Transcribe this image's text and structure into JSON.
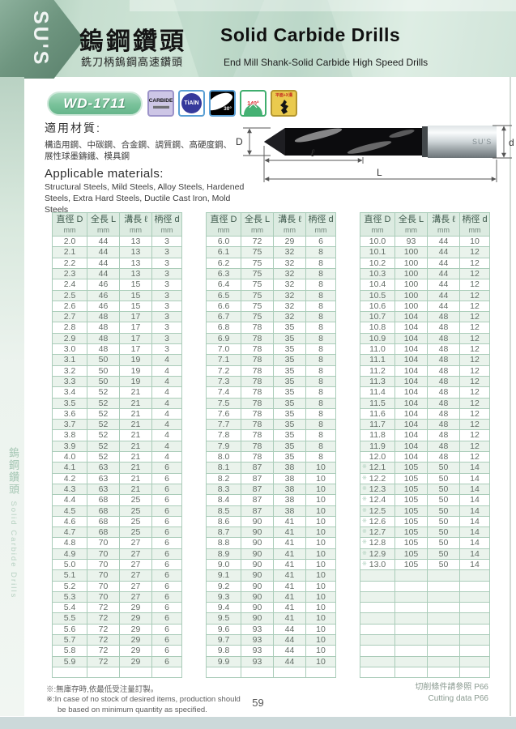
{
  "page": {
    "logo": "SU'S",
    "number": "59"
  },
  "header": {
    "title_zh": "鎢鋼鑽頭",
    "subtitle_zh": "銑刀柄鎢鋼高速鑽頭",
    "title_en": "Solid Carbide Drills",
    "subtitle_en": "End Mill Shank-Solid Carbide High Speed Drills"
  },
  "sidebar": {
    "zh": "鎢鋼鑽頭",
    "en": "Solid Carbide Drills"
  },
  "model": {
    "code": "WD-1711",
    "icons": [
      {
        "name": "carbide",
        "label": "CARBIDE"
      },
      {
        "name": "tialn-coating",
        "label": "TiAlN"
      },
      {
        "name": "helix-30deg",
        "label": "30°"
      },
      {
        "name": "point-angle-140deg",
        "label": "140°"
      },
      {
        "name": "shank-type",
        "label": "平面+X溝"
      }
    ]
  },
  "materials": {
    "heading_zh": "適用材質:",
    "body_zh_line1": "構造用鋼、中碳鋼、合金鋼、調質鋼、高硬度鋼、",
    "body_zh_line2": "展性球墨鑄鐵、模具鋼",
    "heading_en": "Applicable materials:",
    "body_en": "Structural Steels, Mild Steels, Alloy Steels, Hardened Steels, Extra Hard Steels, Ductile Cast Iron, Mold Steels"
  },
  "diagram": {
    "brand": "SU'S",
    "labels": {
      "diameter": "D",
      "flute": "ℓ",
      "total": "L",
      "shank": "d"
    }
  },
  "tables": {
    "star_mark": "※",
    "headers": [
      {
        "label": "直徑 D",
        "unit": "mm"
      },
      {
        "label": "全長 L",
        "unit": "mm"
      },
      {
        "label": "溝長 ℓ",
        "unit": "mm"
      },
      {
        "label": "柄徑 d",
        "unit": "mm"
      }
    ],
    "table1": {
      "empty_rows": 1,
      "rows": [
        [
          "2.0",
          "44",
          "13",
          "3"
        ],
        [
          "2.1",
          "44",
          "13",
          "3"
        ],
        [
          "2.2",
          "44",
          "13",
          "3"
        ],
        [
          "2.3",
          "44",
          "13",
          "3"
        ],
        [
          "2.4",
          "46",
          "15",
          "3"
        ],
        [
          "2.5",
          "46",
          "15",
          "3"
        ],
        [
          "2.6",
          "46",
          "15",
          "3"
        ],
        [
          "2.7",
          "48",
          "17",
          "3"
        ],
        [
          "2.8",
          "48",
          "17",
          "3"
        ],
        [
          "2.9",
          "48",
          "17",
          "3"
        ],
        [
          "3.0",
          "48",
          "17",
          "3"
        ],
        [
          "3.1",
          "50",
          "19",
          "4"
        ],
        [
          "3.2",
          "50",
          "19",
          "4"
        ],
        [
          "3.3",
          "50",
          "19",
          "4"
        ],
        [
          "3.4",
          "52",
          "21",
          "4"
        ],
        [
          "3.5",
          "52",
          "21",
          "4"
        ],
        [
          "3.6",
          "52",
          "21",
          "4"
        ],
        [
          "3.7",
          "52",
          "21",
          "4"
        ],
        [
          "3.8",
          "52",
          "21",
          "4"
        ],
        [
          "3.9",
          "52",
          "21",
          "4"
        ],
        [
          "4.0",
          "52",
          "21",
          "4"
        ],
        [
          "4.1",
          "63",
          "21",
          "6"
        ],
        [
          "4.2",
          "63",
          "21",
          "6"
        ],
        [
          "4.3",
          "63",
          "21",
          "6"
        ],
        [
          "4.4",
          "68",
          "25",
          "6"
        ],
        [
          "4.5",
          "68",
          "25",
          "6"
        ],
        [
          "4.6",
          "68",
          "25",
          "6"
        ],
        [
          "4.7",
          "68",
          "25",
          "6"
        ],
        [
          "4.8",
          "70",
          "27",
          "6"
        ],
        [
          "4.9",
          "70",
          "27",
          "6"
        ],
        [
          "5.0",
          "70",
          "27",
          "6"
        ],
        [
          "5.1",
          "70",
          "27",
          "6"
        ],
        [
          "5.2",
          "70",
          "27",
          "6"
        ],
        [
          "5.3",
          "70",
          "27",
          "6"
        ],
        [
          "5.4",
          "72",
          "29",
          "6"
        ],
        [
          "5.5",
          "72",
          "29",
          "6"
        ],
        [
          "5.6",
          "72",
          "29",
          "6"
        ],
        [
          "5.7",
          "72",
          "29",
          "6"
        ],
        [
          "5.8",
          "72",
          "29",
          "6"
        ],
        [
          "5.9",
          "72",
          "29",
          "6"
        ]
      ]
    },
    "table2": {
      "empty_rows": 1,
      "rows": [
        [
          "6.0",
          "72",
          "29",
          "6"
        ],
        [
          "6.1",
          "75",
          "32",
          "8"
        ],
        [
          "6.2",
          "75",
          "32",
          "8"
        ],
        [
          "6.3",
          "75",
          "32",
          "8"
        ],
        [
          "6.4",
          "75",
          "32",
          "8"
        ],
        [
          "6.5",
          "75",
          "32",
          "8"
        ],
        [
          "6.6",
          "75",
          "32",
          "8"
        ],
        [
          "6.7",
          "75",
          "32",
          "8"
        ],
        [
          "6.8",
          "78",
          "35",
          "8"
        ],
        [
          "6.9",
          "78",
          "35",
          "8"
        ],
        [
          "7.0",
          "78",
          "35",
          "8"
        ],
        [
          "7.1",
          "78",
          "35",
          "8"
        ],
        [
          "7.2",
          "78",
          "35",
          "8"
        ],
        [
          "7.3",
          "78",
          "35",
          "8"
        ],
        [
          "7.4",
          "78",
          "35",
          "8"
        ],
        [
          "7.5",
          "78",
          "35",
          "8"
        ],
        [
          "7.6",
          "78",
          "35",
          "8"
        ],
        [
          "7.7",
          "78",
          "35",
          "8"
        ],
        [
          "7.8",
          "78",
          "35",
          "8"
        ],
        [
          "7.9",
          "78",
          "35",
          "8"
        ],
        [
          "8.0",
          "78",
          "35",
          "8"
        ],
        [
          "8.1",
          "87",
          "38",
          "10"
        ],
        [
          "8.2",
          "87",
          "38",
          "10"
        ],
        [
          "8.3",
          "87",
          "38",
          "10"
        ],
        [
          "8.4",
          "87",
          "38",
          "10"
        ],
        [
          "8.5",
          "87",
          "38",
          "10"
        ],
        [
          "8.6",
          "90",
          "41",
          "10"
        ],
        [
          "8.7",
          "90",
          "41",
          "10"
        ],
        [
          "8.8",
          "90",
          "41",
          "10"
        ],
        [
          "8.9",
          "90",
          "41",
          "10"
        ],
        [
          "9.0",
          "90",
          "41",
          "10"
        ],
        [
          "9.1",
          "90",
          "41",
          "10"
        ],
        [
          "9.2",
          "90",
          "41",
          "10"
        ],
        [
          "9.3",
          "90",
          "41",
          "10"
        ],
        [
          "9.4",
          "90",
          "41",
          "10"
        ],
        [
          "9.5",
          "90",
          "41",
          "10"
        ],
        [
          "9.6",
          "93",
          "44",
          "10"
        ],
        [
          "9.7",
          "93",
          "44",
          "10"
        ],
        [
          "9.8",
          "93",
          "44",
          "10"
        ],
        [
          "9.9",
          "93",
          "44",
          "10"
        ]
      ]
    },
    "table3": {
      "empty_rows": 10,
      "starred": [
        21,
        22,
        23,
        24,
        25,
        26,
        27,
        28,
        29,
        30
      ],
      "rows": [
        [
          "10.0",
          "93",
          "44",
          "10"
        ],
        [
          "10.1",
          "100",
          "44",
          "12"
        ],
        [
          "10.2",
          "100",
          "44",
          "12"
        ],
        [
          "10.3",
          "100",
          "44",
          "12"
        ],
        [
          "10.4",
          "100",
          "44",
          "12"
        ],
        [
          "10.5",
          "100",
          "44",
          "12"
        ],
        [
          "10.6",
          "100",
          "44",
          "12"
        ],
        [
          "10.7",
          "104",
          "48",
          "12"
        ],
        [
          "10.8",
          "104",
          "48",
          "12"
        ],
        [
          "10.9",
          "104",
          "48",
          "12"
        ],
        [
          "11.0",
          "104",
          "48",
          "12"
        ],
        [
          "11.1",
          "104",
          "48",
          "12"
        ],
        [
          "11.2",
          "104",
          "48",
          "12"
        ],
        [
          "11.3",
          "104",
          "48",
          "12"
        ],
        [
          "11.4",
          "104",
          "48",
          "12"
        ],
        [
          "11.5",
          "104",
          "48",
          "12"
        ],
        [
          "11.6",
          "104",
          "48",
          "12"
        ],
        [
          "11.7",
          "104",
          "48",
          "12"
        ],
        [
          "11.8",
          "104",
          "48",
          "12"
        ],
        [
          "11.9",
          "104",
          "48",
          "12"
        ],
        [
          "12.0",
          "104",
          "48",
          "12"
        ],
        [
          "12.1",
          "105",
          "50",
          "14"
        ],
        [
          "12.2",
          "105",
          "50",
          "14"
        ],
        [
          "12.3",
          "105",
          "50",
          "14"
        ],
        [
          "12.4",
          "105",
          "50",
          "14"
        ],
        [
          "12.5",
          "105",
          "50",
          "14"
        ],
        [
          "12.6",
          "105",
          "50",
          "14"
        ],
        [
          "12.7",
          "105",
          "50",
          "14"
        ],
        [
          "12.8",
          "105",
          "50",
          "14"
        ],
        [
          "12.9",
          "105",
          "50",
          "14"
        ],
        [
          "13.0",
          "105",
          "50",
          "14"
        ]
      ]
    }
  },
  "footnotes": {
    "zh": "※:無庫存時,依最低受注量訂製。",
    "en_line1": "※:In case of no stock of desired items, production should",
    "en_line2": "be based on minimum quantity as specified."
  },
  "cutting_note": {
    "zh": "切削條件請參照 P66",
    "en": "Cutting data P66"
  }
}
